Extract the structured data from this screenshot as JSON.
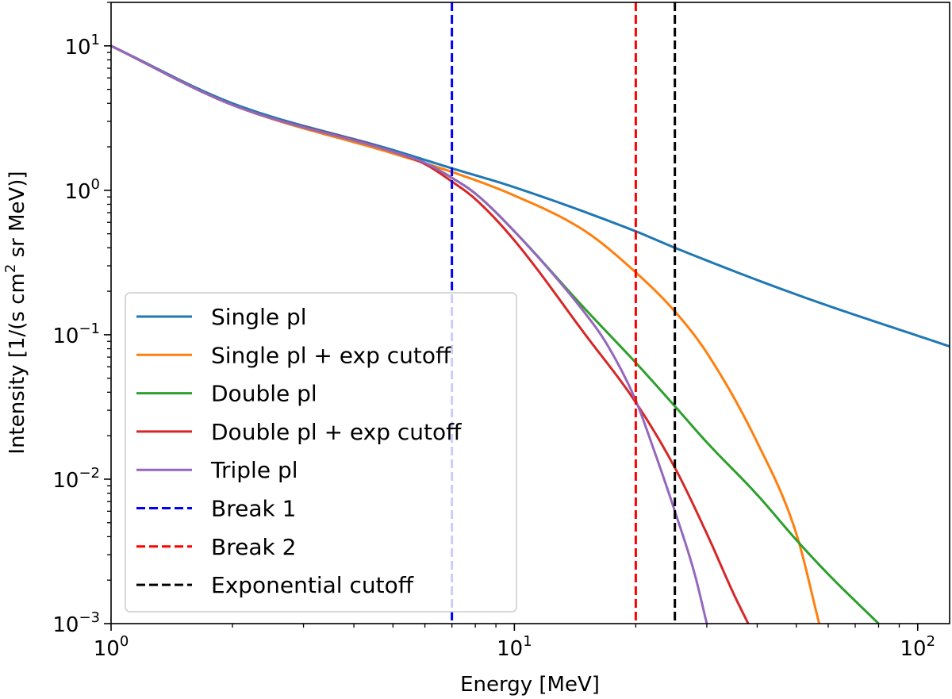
{
  "chart_data": {
    "type": "line",
    "title": "",
    "xlabel": "Energy [MeV]",
    "ylabel_parts": {
      "prefix": "Intensity [1/(s cm",
      "sup": "2",
      "suffix": " sr MeV)]"
    },
    "xscale": "log",
    "yscale": "log",
    "xlim": [
      1,
      120
    ],
    "ylim": [
      0.001,
      20
    ],
    "x_ticks": [
      {
        "value": 1,
        "base": "10",
        "exp": "0"
      },
      {
        "value": 10,
        "base": "10",
        "exp": "1"
      },
      {
        "value": 100,
        "base": "10",
        "exp": "2"
      }
    ],
    "y_ticks": [
      {
        "value": 10,
        "base": "10",
        "exp": "1"
      },
      {
        "value": 1,
        "base": "10",
        "exp": "0"
      },
      {
        "value": 0.1,
        "base": "10",
        "exp": "−1"
      },
      {
        "value": 0.01,
        "base": "10",
        "exp": "−2"
      },
      {
        "value": 0.001,
        "base": "10",
        "exp": "−3"
      }
    ],
    "series": [
      {
        "name": "Single pl",
        "color": "#1f77b4",
        "style": "solid",
        "x": [
          1,
          2,
          5,
          7,
          10,
          20,
          25,
          50,
          120
        ],
        "y": [
          10.0,
          4.0,
          1.9,
          1.42,
          1.05,
          0.52,
          0.4,
          0.19,
          0.083
        ]
      },
      {
        "name": "Single pl + exp cutoff",
        "color": "#ff7f0e",
        "style": "solid",
        "x": [
          1,
          2,
          5,
          7,
          10,
          15,
          20,
          25,
          30,
          40,
          50,
          57
        ],
        "y": [
          10.0,
          3.9,
          1.8,
          1.34,
          0.92,
          0.52,
          0.27,
          0.145,
          0.075,
          0.018,
          0.0042,
          0.001
        ]
      },
      {
        "name": "Double pl",
        "color": "#2ca02c",
        "style": "solid",
        "x": [
          1,
          2,
          5,
          6,
          7,
          8,
          10,
          15,
          20,
          25,
          30,
          40,
          50,
          60,
          80
        ],
        "y": [
          10.0,
          3.9,
          1.85,
          1.55,
          1.22,
          0.95,
          0.52,
          0.15,
          0.064,
          0.032,
          0.018,
          0.0078,
          0.0038,
          0.0022,
          0.001
        ]
      },
      {
        "name": "Double pl + exp cutoff",
        "color": "#d62728",
        "style": "solid",
        "x": [
          1,
          2,
          5,
          6,
          7,
          8,
          10,
          15,
          20,
          25,
          30,
          35,
          38
        ],
        "y": [
          10.0,
          3.9,
          1.85,
          1.52,
          1.15,
          0.87,
          0.45,
          0.1,
          0.034,
          0.012,
          0.0042,
          0.0016,
          0.001
        ]
      },
      {
        "name": "Triple pl",
        "color": "#9467bd",
        "style": "solid",
        "x": [
          1,
          2,
          5,
          6,
          7,
          8,
          10,
          15,
          17,
          20,
          22,
          25,
          28,
          30
        ],
        "y": [
          10.0,
          3.9,
          1.85,
          1.55,
          1.22,
          0.95,
          0.52,
          0.14,
          0.085,
          0.035,
          0.017,
          0.006,
          0.0022,
          0.001
        ]
      }
    ],
    "vlines": [
      {
        "name": "Break 1",
        "x": 7,
        "color": "#0000ff",
        "style": "dashed"
      },
      {
        "name": "Break 2",
        "x": 20,
        "color": "#ff0000",
        "style": "dashed"
      },
      {
        "name": "Exponential cutoff",
        "x": 25,
        "color": "#000000",
        "style": "dashed"
      }
    ],
    "legend_position": "lower-left"
  }
}
